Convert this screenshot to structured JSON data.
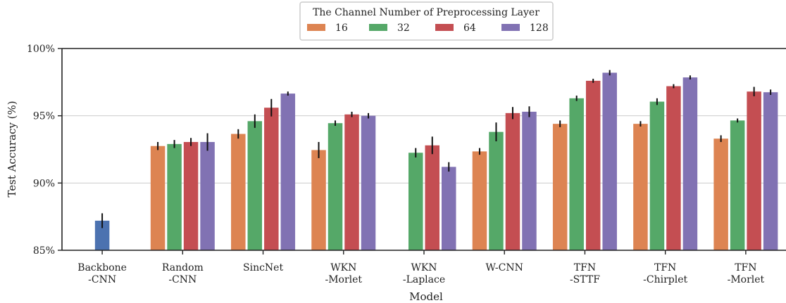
{
  "chart_data": {
    "type": "bar",
    "xlabel": "Model",
    "ylabel": "Test Accuracy (%)",
    "ylim": [
      85,
      100
    ],
    "yticks": [
      {
        "value": 85,
        "label": "85%"
      },
      {
        "value": 90,
        "label": "90%"
      },
      {
        "value": 95,
        "label": "95%"
      },
      {
        "value": 100,
        "label": "100%"
      }
    ],
    "grid": "horizontal",
    "legend": {
      "title": "The Channel Number of Preprocessing Layer",
      "placement": "top-center",
      "entries": [
        "16",
        "32",
        "64",
        "128"
      ]
    },
    "categories": [
      [
        "Backbone",
        "-CNN"
      ],
      [
        "Random",
        "-CNN"
      ],
      [
        "SincNet"
      ],
      [
        "WKN",
        "-Morlet"
      ],
      [
        "WKN",
        "-Laplace"
      ],
      [
        "W-CNN"
      ],
      [
        "TFN",
        "-STTF"
      ],
      [
        "TFN",
        "-Chirplet"
      ],
      [
        "TFN",
        "-Morlet"
      ]
    ],
    "backbone": {
      "category_index": 0,
      "value": 87.2,
      "err": 0.55,
      "color": "#4c72b0"
    },
    "series": [
      {
        "name": "16",
        "color": "#dd8452",
        "values": [
          null,
          92.75,
          93.65,
          92.45,
          null,
          92.35,
          94.4,
          94.4,
          93.3
        ],
        "err": [
          null,
          0.3,
          0.35,
          0.6,
          null,
          0.25,
          0.25,
          0.2,
          0.25
        ]
      },
      {
        "name": "32",
        "color": "#55a868",
        "values": [
          null,
          92.9,
          94.6,
          94.45,
          92.25,
          93.8,
          96.3,
          96.05,
          94.65
        ],
        "err": [
          null,
          0.3,
          0.5,
          0.2,
          0.35,
          0.7,
          0.2,
          0.25,
          0.15
        ]
      },
      {
        "name": "64",
        "color": "#c44e52",
        "values": [
          null,
          93.05,
          95.6,
          95.1,
          92.8,
          95.2,
          97.6,
          97.2,
          96.8
        ],
        "err": [
          null,
          0.3,
          0.65,
          0.2,
          0.65,
          0.45,
          0.15,
          0.15,
          0.35
        ]
      },
      {
        "name": "128",
        "color": "#8172b3",
        "values": [
          null,
          93.05,
          96.65,
          95.0,
          91.2,
          95.3,
          98.2,
          97.85,
          96.75
        ],
        "err": [
          null,
          0.65,
          0.15,
          0.2,
          0.35,
          0.4,
          0.2,
          0.15,
          0.2
        ]
      }
    ]
  }
}
